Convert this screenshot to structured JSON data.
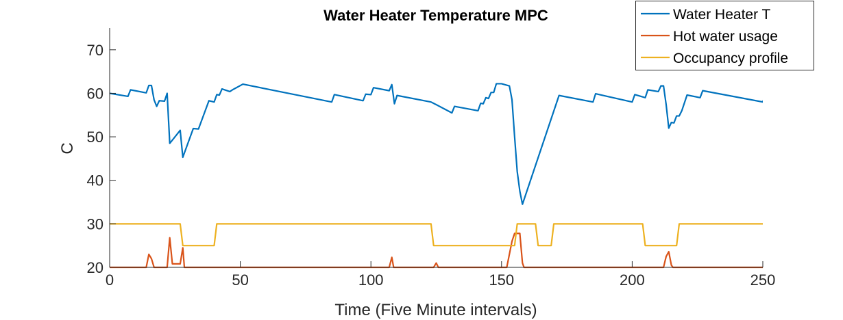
{
  "chart_data": {
    "type": "line",
    "title": "Water Heater Temperature MPC",
    "xlabel": "Time (Five Minute intervals)",
    "ylabel": "C",
    "xlim": [
      0,
      250
    ],
    "ylim": [
      20,
      75
    ],
    "xticks": [
      0,
      50,
      100,
      150,
      200,
      250
    ],
    "yticks": [
      20,
      30,
      40,
      50,
      60,
      70
    ],
    "xtick_labels": [
      "0",
      "50",
      "100",
      "150",
      "200",
      "250"
    ],
    "ytick_labels": [
      "20",
      "30",
      "40",
      "50",
      "60",
      "70"
    ],
    "grid": false,
    "legend_position": "top-right",
    "series": [
      {
        "name": "Water Heater T",
        "color": "#0072BD",
        "points": [
          [
            0,
            60
          ],
          [
            7,
            59.3
          ],
          [
            8,
            60.8
          ],
          [
            14,
            60.1
          ],
          [
            15,
            61.8
          ],
          [
            16,
            61.8
          ],
          [
            17,
            58.5
          ],
          [
            18,
            57
          ],
          [
            19,
            58.3
          ],
          [
            21,
            58.2
          ],
          [
            22,
            60
          ],
          [
            23,
            48.5
          ],
          [
            27,
            51.5
          ],
          [
            28,
            45.3
          ],
          [
            32,
            51.9
          ],
          [
            34,
            51.8
          ],
          [
            38,
            58.3
          ],
          [
            40,
            58
          ],
          [
            41,
            59.7
          ],
          [
            42,
            59.6
          ],
          [
            43,
            61
          ],
          [
            46,
            60.4
          ],
          [
            47,
            60.8
          ],
          [
            51,
            62.1
          ],
          [
            85,
            58
          ],
          [
            86,
            59.7
          ],
          [
            97,
            58.3
          ],
          [
            98,
            59.8
          ],
          [
            100,
            59.7
          ],
          [
            101,
            61.3
          ],
          [
            107,
            60.6
          ],
          [
            108,
            62
          ],
          [
            109,
            57.6
          ],
          [
            110,
            59.5
          ],
          [
            123,
            58
          ],
          [
            124,
            57.7
          ],
          [
            131,
            55.5
          ],
          [
            132,
            57
          ],
          [
            141,
            56
          ],
          [
            142,
            57.7
          ],
          [
            143,
            57.6
          ],
          [
            144,
            59
          ],
          [
            145,
            58.8
          ],
          [
            146,
            60.2
          ],
          [
            147,
            60.2
          ],
          [
            148,
            62.2
          ],
          [
            150,
            62.2
          ],
          [
            153,
            61.7
          ],
          [
            154,
            58.5
          ],
          [
            155,
            50
          ],
          [
            156,
            42
          ],
          [
            157,
            37.5
          ],
          [
            158,
            34.5
          ],
          [
            172,
            59.5
          ],
          [
            185,
            58
          ],
          [
            186,
            59.9
          ],
          [
            200,
            58
          ],
          [
            201,
            59.7
          ],
          [
            205,
            59
          ],
          [
            206,
            60.8
          ],
          [
            210,
            60.4
          ],
          [
            211,
            61.7
          ],
          [
            212,
            61.7
          ],
          [
            213,
            57.4
          ],
          [
            214,
            52
          ],
          [
            215,
            53.3
          ],
          [
            216,
            53.2
          ],
          [
            217,
            54.8
          ],
          [
            218,
            54.8
          ],
          [
            219,
            56
          ],
          [
            221,
            59.6
          ],
          [
            226,
            59
          ],
          [
            227,
            60.6
          ],
          [
            250,
            58
          ],
          [
            251,
            59.8
          ]
        ]
      },
      {
        "name": "Hot water usage",
        "color": "#D95319",
        "points": [
          [
            0,
            20
          ],
          [
            14,
            20
          ],
          [
            15,
            23
          ],
          [
            16,
            22
          ],
          [
            17,
            20
          ],
          [
            22,
            20
          ],
          [
            23,
            26.8
          ],
          [
            24,
            20.8
          ],
          [
            27,
            20.8
          ],
          [
            28,
            24.5
          ],
          [
            28.6,
            20
          ],
          [
            107,
            20
          ],
          [
            108,
            22.3
          ],
          [
            108.7,
            20
          ],
          [
            124,
            20
          ],
          [
            125,
            21
          ],
          [
            125.8,
            20
          ],
          [
            152,
            20
          ],
          [
            154,
            26
          ],
          [
            155,
            27.8
          ],
          [
            157,
            27.8
          ],
          [
            158,
            21
          ],
          [
            158.6,
            20
          ],
          [
            212,
            20
          ],
          [
            213,
            22.5
          ],
          [
            214,
            23.6
          ],
          [
            215,
            20.5
          ],
          [
            215.6,
            20
          ],
          [
            251,
            20
          ]
        ]
      },
      {
        "name": "Occupancy profile",
        "color": "#EDB120",
        "points": [
          [
            0,
            30
          ],
          [
            27,
            30
          ],
          [
            28,
            25
          ],
          [
            40,
            25
          ],
          [
            41,
            30
          ],
          [
            123,
            30
          ],
          [
            124,
            25
          ],
          [
            155,
            25
          ],
          [
            156,
            30
          ],
          [
            163,
            30
          ],
          [
            164,
            25
          ],
          [
            169,
            25
          ],
          [
            170,
            30
          ],
          [
            204,
            30
          ],
          [
            205,
            25
          ],
          [
            217,
            25
          ],
          [
            218,
            30
          ],
          [
            251,
            30
          ]
        ]
      }
    ]
  }
}
